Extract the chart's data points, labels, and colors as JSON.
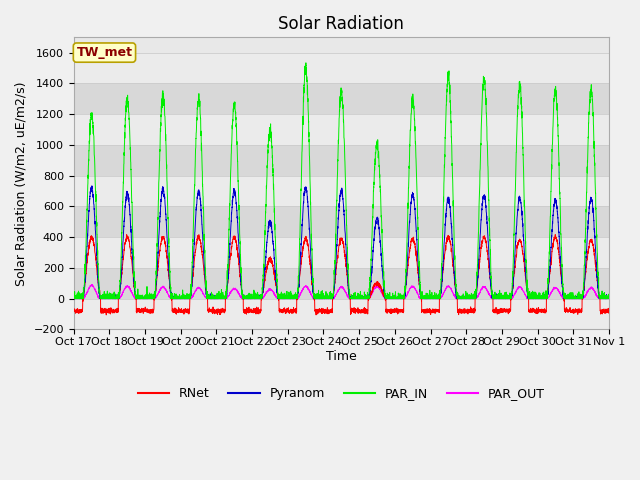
{
  "title": "Solar Radiation",
  "ylabel": "Solar Radiation (W/m2, uE/m2/s)",
  "xlabel": "Time",
  "ylim": [
    -200,
    1700
  ],
  "yticks": [
    -200,
    0,
    200,
    400,
    600,
    800,
    1000,
    1200,
    1400,
    1600
  ],
  "x_labels": [
    "Oct 17",
    "Oct 18",
    "Oct 19",
    "Oct 20",
    "Oct 21",
    "Oct 22",
    "Oct 23",
    "Oct 24",
    "Oct 25",
    "Oct 26",
    "Oct 27",
    "Oct 28",
    "Oct 29",
    "Oct 30",
    "Oct 31",
    "Nov 1"
  ],
  "station_label": "TW_met",
  "legend_entries": [
    "RNet",
    "Pyranom",
    "PAR_IN",
    "PAR_OUT"
  ],
  "line_colors": [
    "#ff0000",
    "#0000cc",
    "#00ee00",
    "#ff00ff"
  ],
  "fig_bg_color": "#f0f0f0",
  "plot_bg_color": "#e8e8e8",
  "band_color_light": "#ebebeb",
  "band_color_dark": "#d8d8d8",
  "n_days": 15,
  "points_per_day": 288,
  "seed": 42,
  "rnet_peaks": [
    400,
    400,
    400,
    400,
    400,
    260,
    390,
    390,
    100,
    390,
    400,
    400,
    380,
    400,
    380
  ],
  "pyranom_peaks": [
    720,
    690,
    710,
    700,
    700,
    500,
    720,
    700,
    520,
    680,
    650,
    670,
    650,
    640,
    650
  ],
  "par_in_peaks": [
    1200,
    1300,
    1330,
    1300,
    1270,
    1100,
    1500,
    1350,
    1010,
    1300,
    1440,
    1430,
    1390,
    1360,
    1360
  ],
  "par_out_peaks": [
    85,
    80,
    75,
    70,
    65,
    60,
    80,
    75,
    80,
    80,
    80,
    75,
    75,
    70,
    70
  ],
  "rnet_night": -80,
  "title_fontsize": 12,
  "label_fontsize": 9,
  "tick_fontsize": 8,
  "legend_fontsize": 9,
  "grid_color": "#cccccc",
  "line_width": 0.7
}
